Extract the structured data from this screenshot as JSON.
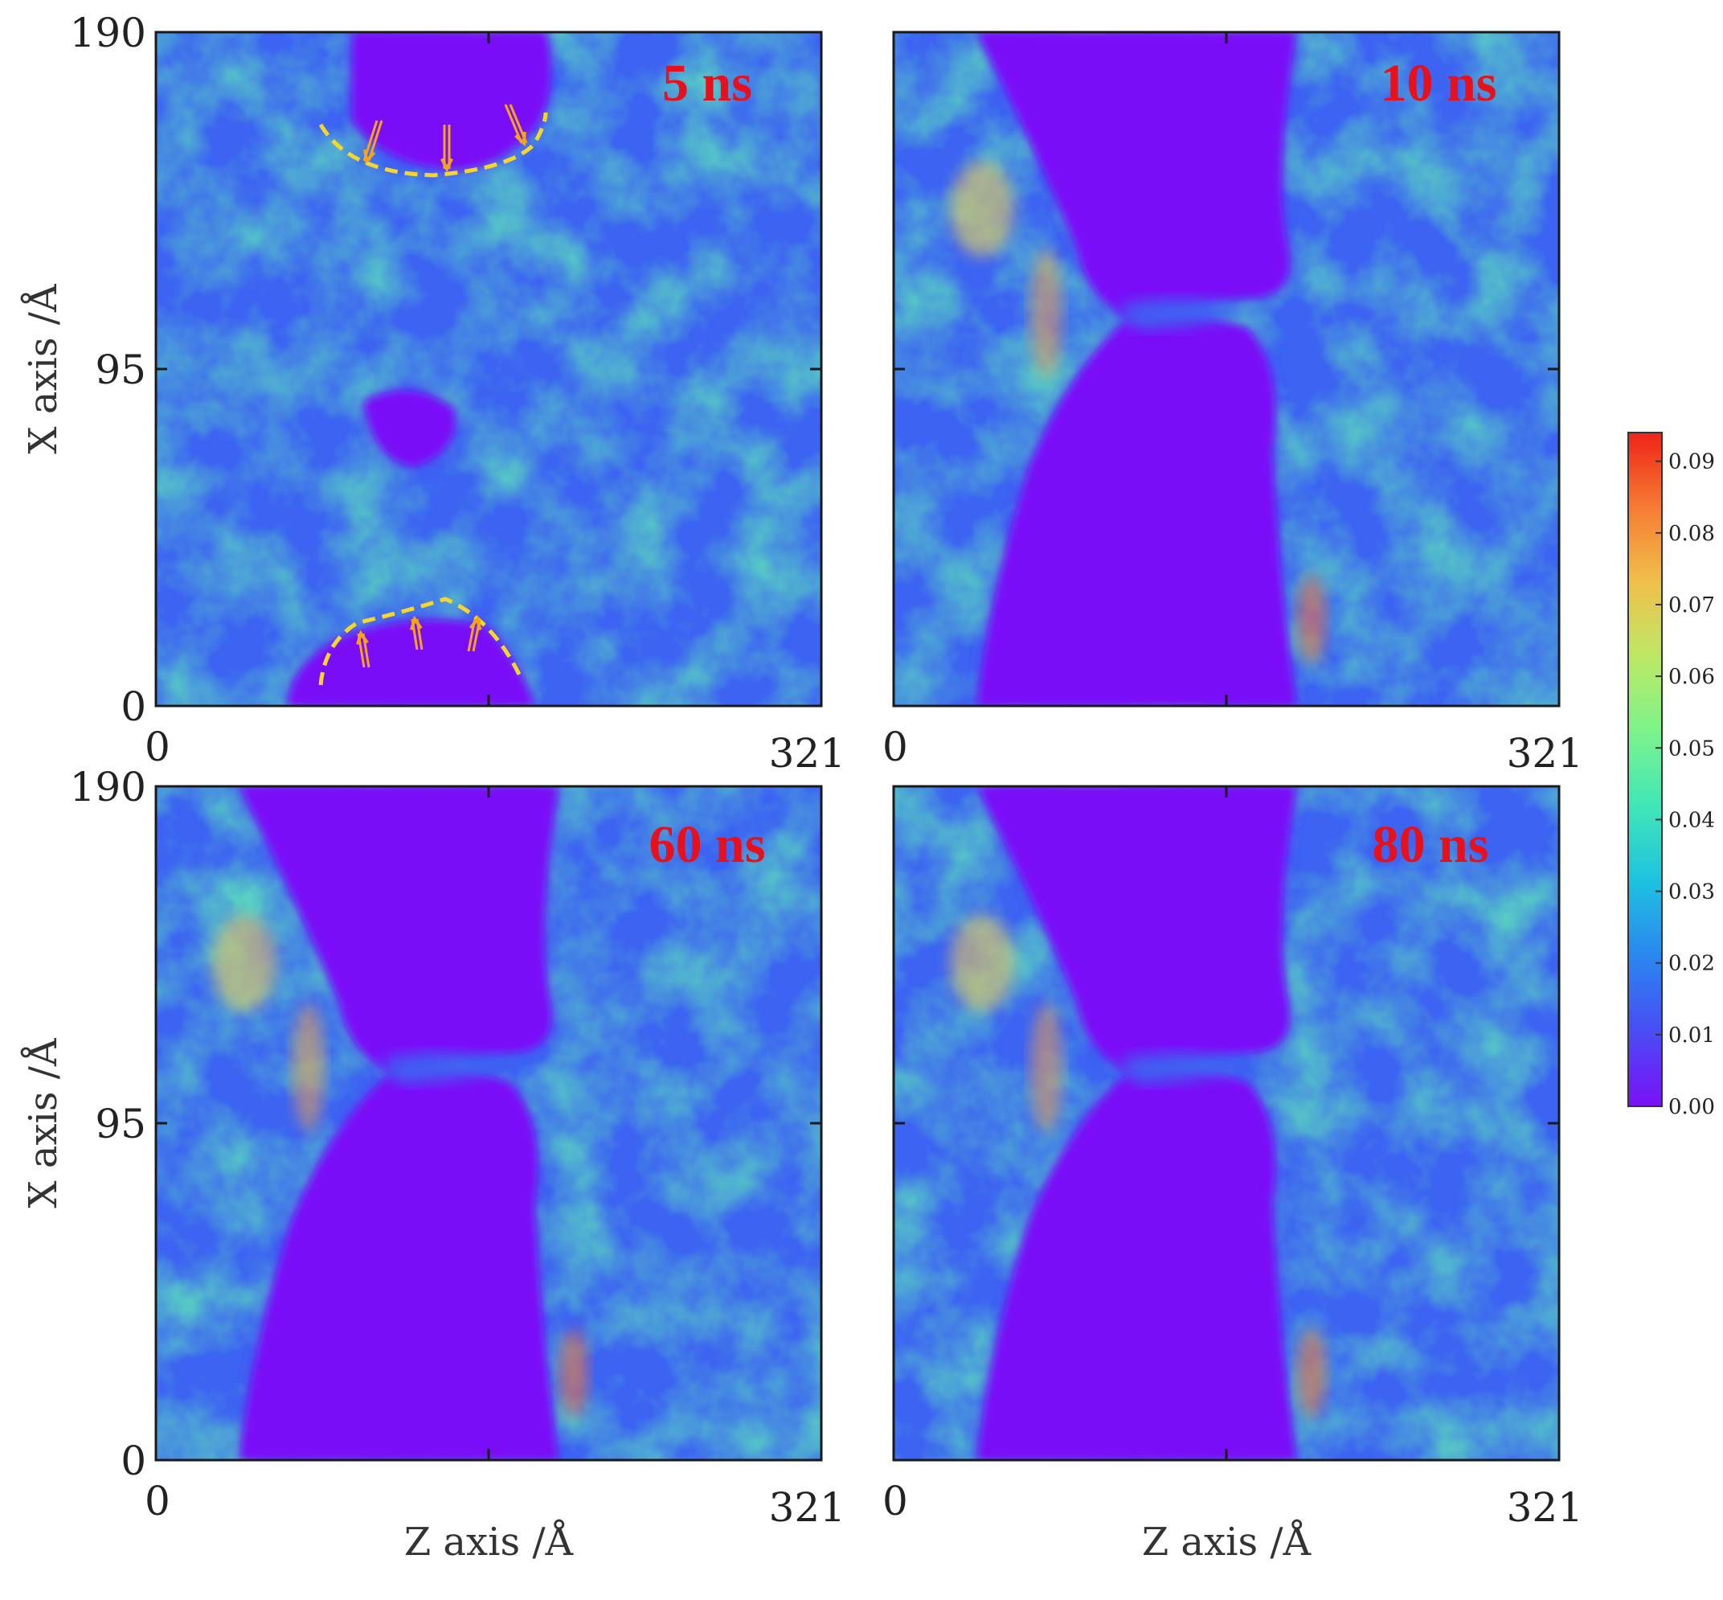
{
  "chart_data": [
    {
      "type": "heatmap",
      "panel": "top-left",
      "annotation": "5 ns",
      "xlabel": "",
      "ylabel": "X axis /Å",
      "xlim": [
        0,
        321
      ],
      "ylim": [
        0,
        190
      ],
      "x_ticks": [
        "0",
        "321"
      ],
      "y_ticks": [
        "0",
        "95",
        "190"
      ],
      "markings": "yellow dashed curves with orange arrows marking two cavity fronts"
    },
    {
      "type": "heatmap",
      "panel": "top-right",
      "annotation": "10 ns",
      "xlabel": "",
      "ylabel": "",
      "xlim": [
        0,
        321
      ],
      "ylim": [
        0,
        190
      ],
      "x_ticks": [
        "0",
        "321"
      ],
      "y_ticks": []
    },
    {
      "type": "heatmap",
      "panel": "bottom-left",
      "annotation": "60 ns",
      "xlabel": "Z axis /Å",
      "ylabel": "X axis /Å",
      "xlim": [
        0,
        321
      ],
      "ylim": [
        0,
        190
      ],
      "x_ticks": [
        "0",
        "321"
      ],
      "y_ticks": [
        "0",
        "95",
        "190"
      ]
    },
    {
      "type": "heatmap",
      "panel": "bottom-right",
      "annotation": "80 ns",
      "xlabel": "Z axis /Å",
      "ylabel": "",
      "xlim": [
        0,
        321
      ],
      "ylim": [
        0,
        190
      ],
      "x_ticks": [
        "0",
        "321"
      ],
      "y_ticks": []
    }
  ],
  "colorbar": {
    "min": 0.0,
    "max": 0.094,
    "ticks": [
      "0.00",
      "0.01",
      "0.02",
      "0.03",
      "0.04",
      "0.05",
      "0.06",
      "0.07",
      "0.08",
      "0.09"
    ],
    "colors": [
      "#7a10f7",
      "#4a4cf5",
      "#2a86f0",
      "#1ec1e0",
      "#3fe6b8",
      "#7cf38c",
      "#bde866",
      "#f0c04a",
      "#f77b34",
      "#ee2418"
    ]
  },
  "style": {
    "void_color": "#7a10f7",
    "annotation_color": "#e8101a",
    "dash_color": "#f7d62b",
    "arrow_color": "#f7a21b"
  }
}
